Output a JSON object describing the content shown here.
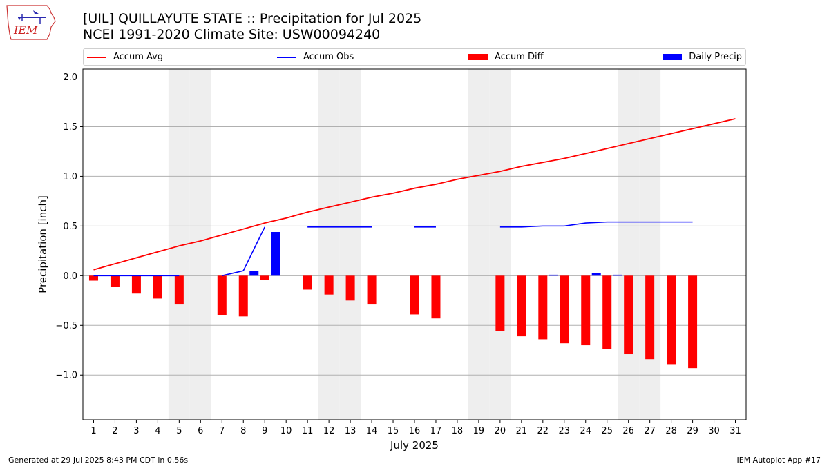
{
  "header": {
    "title_line1": "[UIL] QUILLAYUTE STATE :: Precipitation for Jul 2025",
    "title_line2": "NCEI 1991-2020 Climate Site: USW00094240"
  },
  "logo": {
    "text": "IEM"
  },
  "legend": {
    "items": [
      {
        "label": "Accum Avg",
        "kind": "line",
        "color": "#ff0000"
      },
      {
        "label": "Accum Obs",
        "kind": "line",
        "color": "#0000ff"
      },
      {
        "label": "Accum Diff",
        "kind": "bar",
        "color": "#ff0000"
      },
      {
        "label": "Daily Precip",
        "kind": "bar",
        "color": "#0000ff"
      }
    ]
  },
  "footer": {
    "left": "Generated at 29 Jul 2025 8:43 PM CDT in 0.56s",
    "right": "IEM Autoplot App #17"
  },
  "colors": {
    "avg": "#ff0000",
    "obs": "#0000ff",
    "weekend_band": "#eeeeee",
    "grid": "#b0b0b0"
  },
  "chart_data": {
    "type": "bar",
    "xlabel": "July 2025",
    "ylabel": "Precipitation [inch]",
    "xlim": [
      0.5,
      31.5
    ],
    "ylim": [
      -1.45,
      2.08
    ],
    "yticks": [
      -1.0,
      -0.5,
      0.0,
      0.5,
      1.0,
      1.5,
      2.0
    ],
    "ytick_labels": [
      "−1.0",
      "−0.5",
      "0.0",
      "0.5",
      "1.0",
      "1.5",
      "2.0"
    ],
    "days": [
      1,
      2,
      3,
      4,
      5,
      6,
      7,
      8,
      9,
      10,
      11,
      12,
      13,
      14,
      15,
      16,
      17,
      18,
      19,
      20,
      21,
      22,
      23,
      24,
      25,
      26,
      27,
      28,
      29,
      30,
      31
    ],
    "grid": "y",
    "shaded_days": [
      5,
      6,
      12,
      13,
      19,
      20,
      26,
      27
    ],
    "series": [
      {
        "name": "Accum Avg",
        "type": "line",
        "values": [
          0.06,
          0.12,
          0.18,
          0.24,
          0.3,
          0.35,
          0.41,
          0.47,
          0.53,
          0.58,
          0.64,
          0.69,
          0.74,
          0.79,
          0.83,
          0.88,
          0.92,
          0.97,
          1.01,
          1.05,
          1.1,
          1.14,
          1.18,
          1.23,
          1.28,
          1.33,
          1.38,
          1.43,
          1.48,
          1.53,
          1.58
        ]
      },
      {
        "name": "Accum Obs",
        "type": "line",
        "segments": [
          {
            "days": [
              1,
              2,
              3,
              4,
              5
            ],
            "values": [
              0.0,
              0.0,
              0.0,
              0.0,
              0.0
            ]
          },
          {
            "days": [
              7,
              8,
              9
            ],
            "values": [
              0.0,
              0.05,
              0.49
            ]
          },
          {
            "days": [
              11,
              12,
              13,
              14
            ],
            "values": [
              0.49,
              0.49,
              0.49,
              0.49
            ]
          },
          {
            "days": [
              16,
              17
            ],
            "values": [
              0.49,
              0.49
            ]
          },
          {
            "days": [
              20,
              21,
              22,
              23,
              24,
              25,
              26,
              27,
              28,
              29
            ],
            "values": [
              0.49,
              0.49,
              0.5,
              0.5,
              0.53,
              0.54,
              0.54,
              0.54,
              0.54,
              0.54
            ]
          }
        ]
      },
      {
        "name": "Accum Diff",
        "type": "bar",
        "days": [
          1,
          2,
          3,
          4,
          5,
          7,
          8,
          9,
          11,
          12,
          13,
          14,
          16,
          17,
          20,
          21,
          22,
          23,
          24,
          25,
          26,
          27,
          28,
          29
        ],
        "values": [
          -0.05,
          -0.11,
          -0.18,
          -0.23,
          -0.29,
          -0.4,
          -0.41,
          -0.04,
          -0.14,
          -0.19,
          -0.25,
          -0.29,
          -0.39,
          -0.43,
          -0.56,
          -0.61,
          -0.64,
          -0.68,
          -0.7,
          -0.74,
          -0.79,
          -0.84,
          -0.89,
          -0.93
        ]
      },
      {
        "name": "Daily Precip",
        "type": "bar",
        "days": [
          8,
          9,
          22,
          24,
          25
        ],
        "values": [
          0.05,
          0.44,
          0.01,
          0.03,
          0.01
        ]
      }
    ]
  }
}
